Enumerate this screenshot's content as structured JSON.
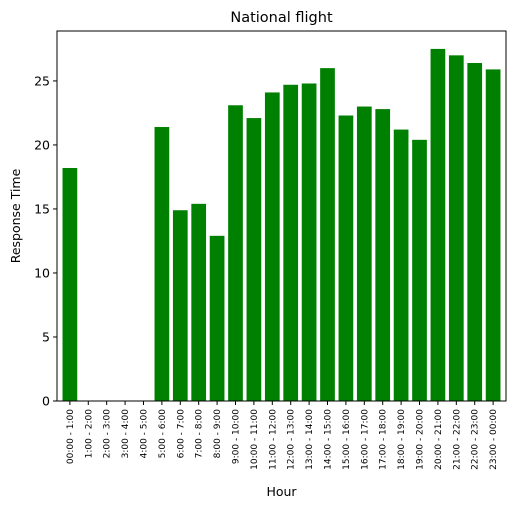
{
  "chart_data": {
    "type": "bar",
    "title": "National flight",
    "xlabel": "Hour",
    "ylabel": "Response Time",
    "categories": [
      "00:00 - 1:00",
      "1:00 - 2:00",
      "2:00 - 3:00",
      "3:00 - 4:00",
      "4:00 - 5:00",
      "5:00 - 6:00",
      "6:00 - 7:00",
      "7:00 - 8:00",
      "8:00 - 9:00",
      "9:00 - 10:00",
      "10:00 - 11:00",
      "11:00 - 12:00",
      "12:00 - 13:00",
      "13:00 - 14:00",
      "14:00 - 15:00",
      "15:00 - 16:00",
      "16:00 - 17:00",
      "17:00 - 18:00",
      "18:00 - 19:00",
      "19:00 - 20:00",
      "20:00 - 21:00",
      "21:00 - 22:00",
      "22:00 - 23:00",
      "23:00 - 00:00"
    ],
    "values": [
      18.2,
      0,
      0,
      0,
      0,
      21.4,
      14.9,
      15.4,
      12.9,
      23.1,
      22.1,
      24.1,
      24.7,
      24.8,
      26.0,
      22.3,
      23.0,
      22.8,
      21.2,
      20.4,
      27.5,
      27.0,
      26.4,
      25.9
    ],
    "ylim": [
      0,
      28.9
    ],
    "yticks": [
      0,
      5,
      10,
      15,
      20,
      25
    ],
    "bar_color": "#008000",
    "grid": false
  }
}
